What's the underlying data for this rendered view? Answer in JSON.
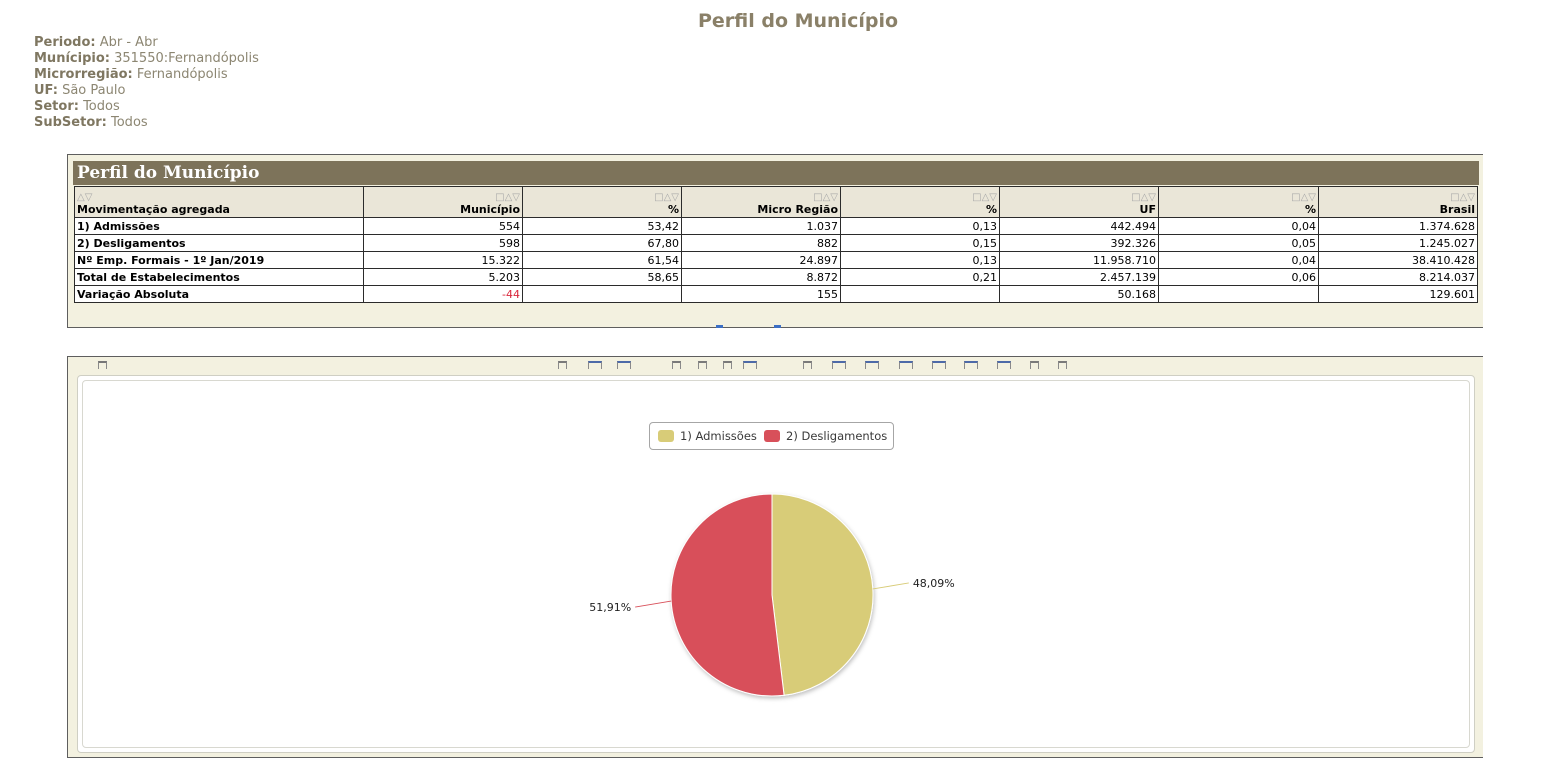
{
  "page": {
    "title": "Perfil do Município"
  },
  "filters": [
    {
      "label": "Periodo:",
      "value": "Abr - Abr"
    },
    {
      "label": "Munícipio:",
      "value": "351550:Fernandópolis"
    },
    {
      "label": "Microrregião:",
      "value": "Fernandópolis"
    },
    {
      "label": "UF:",
      "value": "São Paulo"
    },
    {
      "label": "Setor:",
      "value": "Todos"
    },
    {
      "label": "SubSetor:",
      "value": "Todos"
    }
  ],
  "table": {
    "title": "Perfil do Município",
    "columns": [
      "Movimentação agregada",
      "Município",
      "%",
      "Micro Região",
      "%",
      "UF",
      "%",
      "Brasil"
    ],
    "sort_glyph_first": "△▽",
    "sort_glyph": "□△▽",
    "rows": [
      {
        "label": "1) Admissões",
        "cells": [
          "554",
          "53,42",
          "1.037",
          "0,13",
          "442.494",
          "0,04",
          "1.374.628"
        ]
      },
      {
        "label": "2) Desligamentos",
        "cells": [
          "598",
          "67,80",
          "882",
          "0,15",
          "392.326",
          "0,05",
          "1.245.027"
        ]
      },
      {
        "label": "Nº Emp. Formais - 1º Jan/2019",
        "cells": [
          "15.322",
          "61,54",
          "24.897",
          "0,13",
          "11.958.710",
          "0,04",
          "38.410.428"
        ]
      },
      {
        "label": "Total de Estabelecimentos",
        "cells": [
          "5.203",
          "58,65",
          "8.872",
          "0,21",
          "2.457.139",
          "0,06",
          "8.214.037"
        ]
      },
      {
        "label": "Variação Absoluta",
        "cells": [
          "-44",
          "",
          "155",
          "",
          "50.168",
          "",
          "129.601"
        ]
      }
    ]
  },
  "chart_data": {
    "type": "pie",
    "title": "",
    "legend": "top-center",
    "series": [
      {
        "name": "1) Admissões",
        "value": 554,
        "label": "48,09%",
        "color": "#d8cc78"
      },
      {
        "name": "2) Desligamentos",
        "value": 598,
        "label": "51,91%",
        "color": "#d8505a"
      }
    ]
  }
}
